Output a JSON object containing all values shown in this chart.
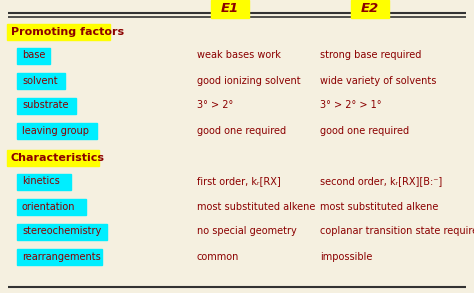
{
  "title_e1": "E1",
  "title_e2": "E2",
  "header_bg": "#FFFF00",
  "cell_bg": "#00EEFF",
  "text_color": "#8B0000",
  "border_color": "#333333",
  "bg_color": "#F5F0E0",
  "sections": [
    {
      "label": "Promoting factors",
      "rows": [
        {
          "label": "base",
          "e1": "weak bases work",
          "e2": "strong base required"
        },
        {
          "label": "solvent",
          "e1": "good ionizing solvent",
          "e2": "wide variety of solvents"
        },
        {
          "label": "substrate",
          "e1": "3° > 2°",
          "e2": "3° > 2° > 1°"
        },
        {
          "label": "leaving group",
          "e1": "good one required",
          "e2": "good one required"
        }
      ]
    },
    {
      "label": "Characteristics",
      "rows": [
        {
          "label": "kinetics",
          "e1": "first order, kᵣ[RX]",
          "e2": "second order, kᵣ[RX][B:⁻]"
        },
        {
          "label": "orientation",
          "e1": "most substituted alkene",
          "e2": "most substituted alkene"
        },
        {
          "label": "stereochemistry",
          "e1": "no special geometry",
          "e2": "coplanar transition state require…"
        },
        {
          "label": "rearrangements",
          "e1": "common",
          "e2": "impossible"
        }
      ]
    }
  ],
  "fontsize": 7.0,
  "header_fontsize": 8.0,
  "col_header_fontsize": 9.5
}
